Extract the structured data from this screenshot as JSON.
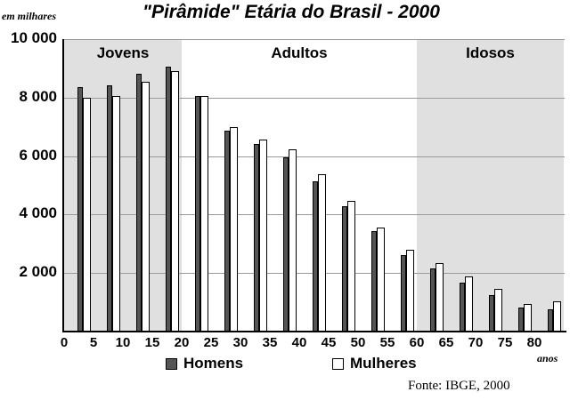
{
  "header": {
    "title": "\"Pirâmide\" Etária do Brasil - 2000",
    "unit_label": "em milhares",
    "x_unit_label": "anos",
    "source": "Fonte: IBGE, 2000"
  },
  "bands": [
    {
      "label": "Jovens",
      "from": 0,
      "to": 20,
      "shaded": true
    },
    {
      "label": "Adultos",
      "from": 20,
      "to": 60,
      "shaded": false
    },
    {
      "label": "Idosos",
      "from": 60,
      "to": 85,
      "shaded": true
    }
  ],
  "legend": {
    "men": "Homens",
    "women": "Mulheres"
  },
  "y_ticks": [
    "10 000",
    "8 000",
    "6 000",
    "4 000",
    "2 000"
  ],
  "x_ticks": [
    "0",
    "5",
    "10",
    "15",
    "20",
    "25",
    "30",
    "35",
    "40",
    "45",
    "50",
    "55",
    "60",
    "65",
    "70",
    "75",
    "80"
  ],
  "colors": {
    "men": "#555555",
    "women": "#ffffff",
    "band_shade": "#e0e0e0",
    "grid": "#9a9a9a"
  },
  "chart_data": {
    "type": "bar",
    "title": "\"Pirâmide\" Etária do Brasil - 2000",
    "xlabel": "anos",
    "ylabel": "em milhares",
    "ylim": [
      0,
      10000
    ],
    "grid": true,
    "legend_position": "bottom",
    "categories": [
      "0-4",
      "5-9",
      "10-14",
      "15-19",
      "20-24",
      "25-29",
      "30-34",
      "35-39",
      "40-44",
      "45-49",
      "50-54",
      "55-59",
      "60-64",
      "65-69",
      "70-74",
      "75-79",
      "80+"
    ],
    "series": [
      {
        "name": "Homens",
        "values": [
          8350,
          8420,
          8800,
          9060,
          8050,
          6870,
          6410,
          5960,
          5140,
          4290,
          3430,
          2610,
          2160,
          1670,
          1250,
          820,
          760
        ]
      },
      {
        "name": "Mulheres",
        "values": [
          8000,
          8050,
          8540,
          8900,
          8050,
          6990,
          6560,
          6230,
          5380,
          4470,
          3560,
          2800,
          2340,
          1880,
          1460,
          940,
          1030
        ]
      }
    ],
    "annotations": [
      "Jovens",
      "Adultos",
      "Idosos",
      "Fonte: IBGE, 2000"
    ]
  }
}
